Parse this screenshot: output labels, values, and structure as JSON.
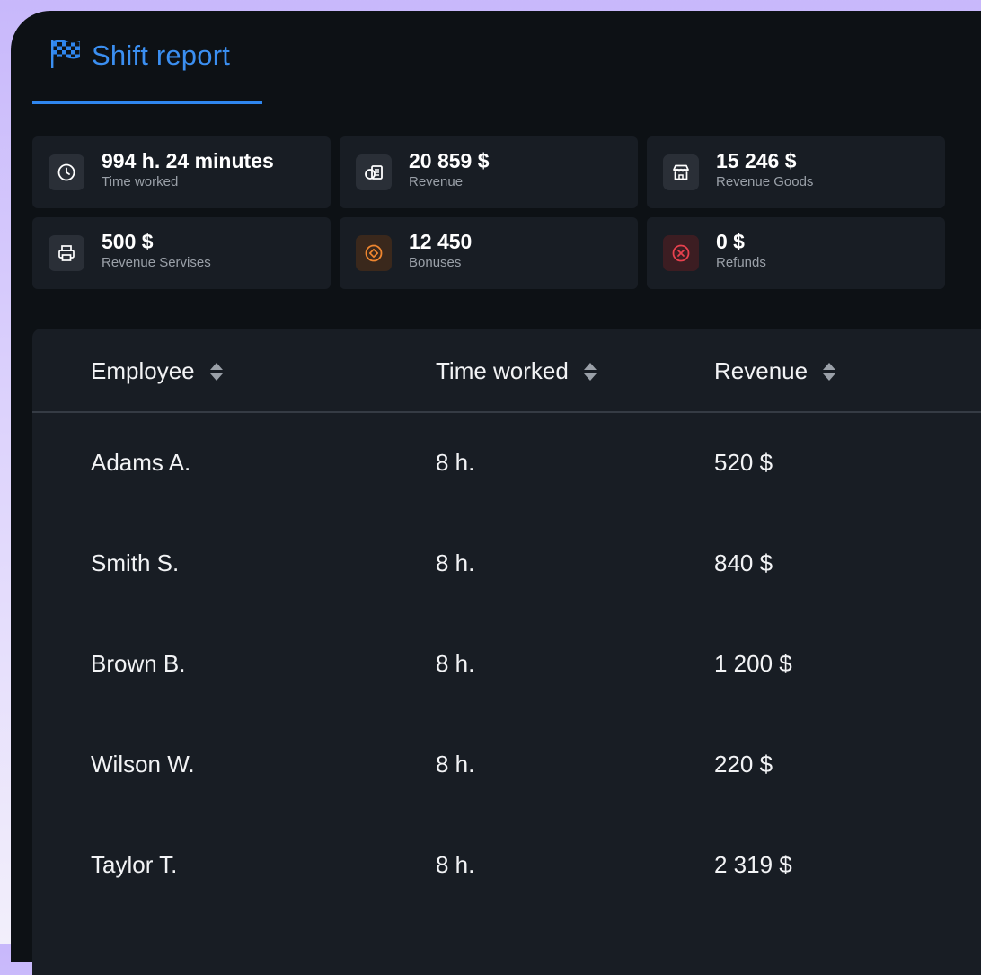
{
  "header": {
    "title": "Shift report",
    "icon": "checkered-flag-icon"
  },
  "stats": [
    {
      "value": "994 h. 24 minutes",
      "label": "Time worked",
      "icon": "clock-icon"
    },
    {
      "value": "20 859 $",
      "label": "Revenue",
      "icon": "cash-icon"
    },
    {
      "value": "15 246 $",
      "label": "Revenue Goods",
      "icon": "store-icon"
    },
    {
      "value": "500 $",
      "label": "Revenue Servises",
      "icon": "printer-icon"
    },
    {
      "value": "12 450",
      "label": "Bonuses",
      "icon": "bonus-icon"
    },
    {
      "value": "0 $",
      "label": "Refunds",
      "icon": "cancel-circle-icon"
    }
  ],
  "table": {
    "columns": [
      "Employee",
      "Time worked",
      "Revenue"
    ],
    "rows": [
      {
        "employee": "Adams A.",
        "time": "8 h.",
        "revenue": "520 $"
      },
      {
        "employee": "Smith S.",
        "time": "8 h.",
        "revenue": "840 $"
      },
      {
        "employee": "Brown B.",
        "time": "8 h.",
        "revenue": "1 200 $"
      },
      {
        "employee": "Wilson W.",
        "time": "8 h.",
        "revenue": "220 $"
      },
      {
        "employee": "Taylor T.",
        "time": "8 h.",
        "revenue": "2 319 $"
      }
    ]
  },
  "colors": {
    "accent": "#2f86ee",
    "bonus": "#f0862f",
    "refund": "#e8414e"
  }
}
